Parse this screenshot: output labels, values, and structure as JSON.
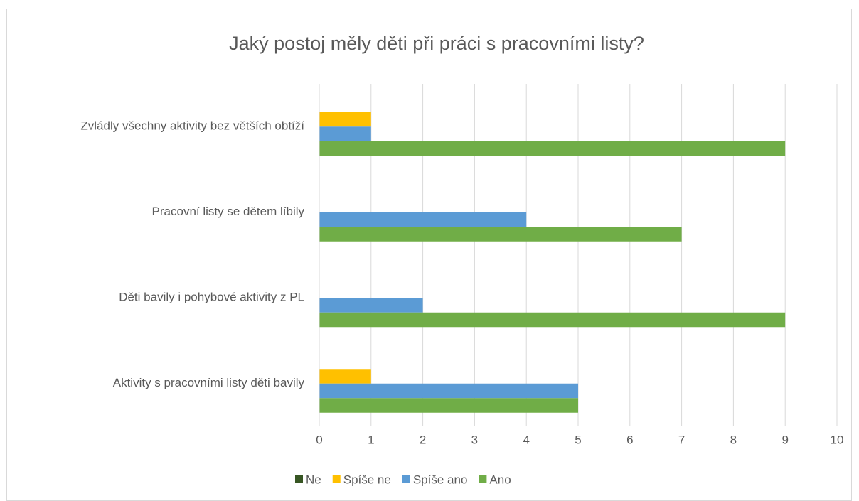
{
  "chart_data": {
    "type": "bar",
    "orientation": "horizontal",
    "title": "Jaký postoj měly děti při práci s pracovními listy?",
    "categories": [
      "Aktivity s pracovními listy děti bavily",
      "Děti bavily i pohybové aktivity z PL",
      "Pracovní listy se dětem líbily",
      "Zvládly všechny aktivity bez větších obtíží"
    ],
    "series": [
      {
        "name": "Ne",
        "color": "#375623",
        "values": [
          0,
          0,
          0,
          0
        ]
      },
      {
        "name": "Spíše ne",
        "color": "#ffc000",
        "values": [
          1,
          0,
          0,
          1
        ]
      },
      {
        "name": "Spíše ano",
        "color": "#5b9bd5",
        "values": [
          5,
          2,
          4,
          1
        ]
      },
      {
        "name": "Ano",
        "color": "#70ad47",
        "values": [
          5,
          9,
          7,
          9
        ]
      }
    ],
    "xlim": [
      0,
      10
    ],
    "xticks": [
      0,
      1,
      2,
      3,
      4,
      5,
      6,
      7,
      8,
      9,
      10
    ],
    "grid": true,
    "legend": "bottom"
  }
}
